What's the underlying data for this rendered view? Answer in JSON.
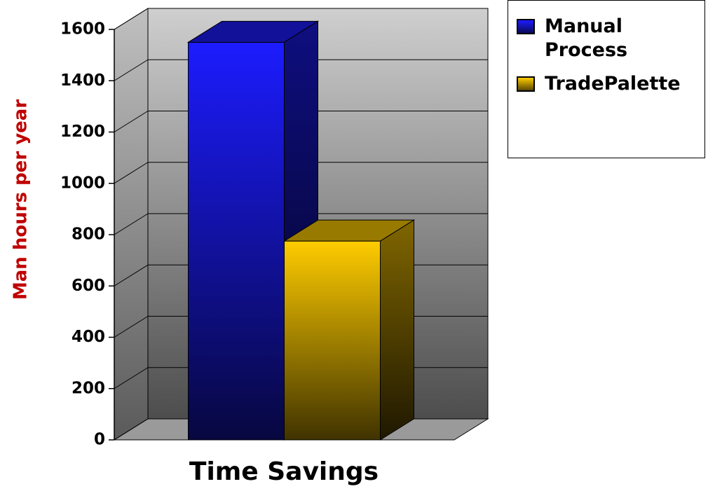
{
  "chart_data": {
    "type": "bar3d",
    "categories": [
      "Time Savings"
    ],
    "series": [
      {
        "name": "Manual Process",
        "color": "#1c1cff",
        "values": [
          1550
        ]
      },
      {
        "name": "TradePalette",
        "color": "#ffcc00",
        "values": [
          775
        ]
      }
    ],
    "y_label": "Man hours per year",
    "ylim": [
      0,
      1600
    ],
    "yticks": [
      0,
      200,
      400,
      600,
      800,
      1000,
      1200,
      1400,
      1600
    ],
    "grid": true,
    "legend": "top-right"
  }
}
